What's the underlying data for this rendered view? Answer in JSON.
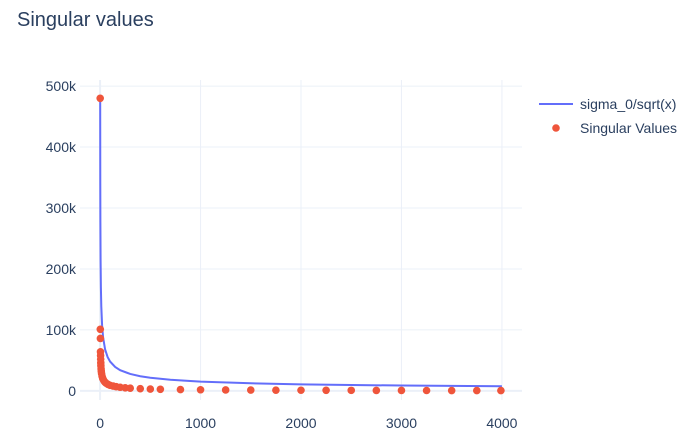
{
  "chart_data": {
    "type": "scatter",
    "title": "Singular values",
    "xlabel": "",
    "ylabel": "",
    "xlim": [
      -200,
      4200
    ],
    "ylim": [
      -15000,
      510000
    ],
    "x_ticks": [
      0,
      1000,
      2000,
      3000,
      4000
    ],
    "x_tick_labels": [
      "0",
      "1000",
      "2000",
      "3000",
      "4000"
    ],
    "y_ticks": [
      0,
      100000,
      200000,
      300000,
      400000,
      500000
    ],
    "y_tick_labels": [
      "0",
      "100k",
      "200k",
      "300k",
      "400k",
      "500k"
    ],
    "grid": true,
    "legend_position": "top-right",
    "series": [
      {
        "name": "sigma_0/sqrt(x)",
        "mode": "lines",
        "color": "#636efa",
        "x": [
          1,
          2,
          3,
          5,
          8,
          12,
          20,
          30,
          50,
          75,
          100,
          150,
          200,
          300,
          400,
          500,
          700,
          1000,
          1500,
          2000,
          2500,
          3000,
          3500,
          4000
        ],
        "y": [
          480000,
          339411,
          277128,
          214663,
          169706,
          138564,
          107331,
          87636,
          67882,
          55426,
          48000,
          39192,
          33941,
          27713,
          24000,
          21466,
          18142,
          15179,
          12394,
          10733,
          9600,
          8764,
          8114,
          7589
        ]
      },
      {
        "name": "Singular Values",
        "mode": "markers",
        "color": "#ef553b",
        "x": [
          1,
          2,
          3,
          4,
          5,
          6,
          7,
          8,
          10,
          12,
          15,
          20,
          25,
          30,
          40,
          50,
          60,
          80,
          100,
          130,
          160,
          200,
          250,
          300,
          400,
          500,
          600,
          800,
          1000,
          1250,
          1500,
          1750,
          2000,
          2250,
          2500,
          2750,
          3000,
          3250,
          3500,
          3750,
          3990
        ],
        "y": [
          480000,
          101000,
          86000,
          64000,
          58000,
          52000,
          46000,
          41000,
          36000,
          32000,
          28000,
          24000,
          21000,
          19000,
          16000,
          14000,
          12500,
          10500,
          9000,
          7800,
          6800,
          5900,
          5000,
          4400,
          3600,
          3000,
          2600,
          2100,
          1800,
          1500,
          1300,
          1150,
          1000,
          900,
          800,
          720,
          650,
          580,
          520,
          470,
          420
        ]
      }
    ]
  }
}
